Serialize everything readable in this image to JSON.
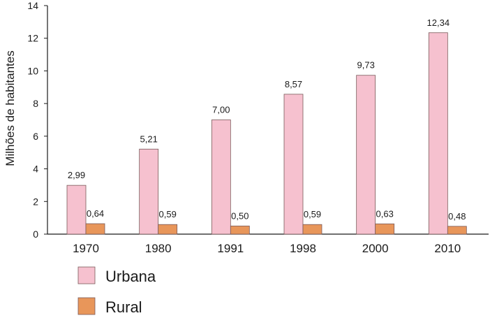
{
  "chart_data": {
    "type": "bar",
    "categories": [
      "1970",
      "1980",
      "1991",
      "1998",
      "2000",
      "2010"
    ],
    "series": [
      {
        "name": "Urbana",
        "values": [
          2.99,
          5.21,
          7.0,
          8.57,
          9.73,
          12.34
        ],
        "labels": [
          "2,99",
          "5,21",
          "7,00",
          "8,57",
          "9,73",
          "12,34"
        ],
        "color": "#f6c1cf"
      },
      {
        "name": "Rural",
        "values": [
          0.64,
          0.59,
          0.5,
          0.59,
          0.63,
          0.48
        ],
        "labels": [
          "0,64",
          "0,59",
          "0,50",
          "0,59",
          "0,63",
          "0,48"
        ],
        "color": "#e8965a"
      }
    ],
    "ylabel": "Milhões de habitantes",
    "xlabel": "",
    "ylim": [
      0,
      14
    ],
    "yticks": [
      "0",
      "2",
      "4",
      "6",
      "8",
      "10",
      "12",
      "14"
    ],
    "grid": false,
    "legend_position": "bottom-left"
  }
}
